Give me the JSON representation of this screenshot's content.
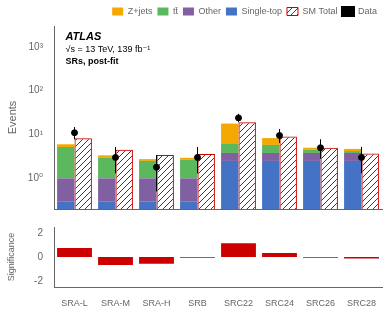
{
  "chart_data": [
    {
      "type": "bar",
      "stacked": true,
      "log": "y",
      "categories": [
        "SRA-L",
        "SRA-M",
        "SRA-H",
        "SRB",
        "SRC22",
        "SRC24",
        "SRC26",
        "SRC28"
      ],
      "series": [
        {
          "name": "Single-top",
          "color": "#4472c4",
          "values": [
            0.3,
            0.3,
            0.3,
            0.3,
            2.5,
            2.5,
            2.5,
            2.5
          ]
        },
        {
          "name": "Other",
          "color": "#8060a0",
          "values": [
            0.7,
            0.7,
            0.7,
            0.7,
            1.3,
            1.3,
            1.3,
            1.3
          ]
        },
        {
          "name": "tt̄",
          "color": "#5cb85c",
          "values": [
            4.2,
            2.0,
            1.5,
            1.7,
            2.5,
            2.0,
            0.7,
            0.4
          ]
        },
        {
          "name": "Z+jets",
          "color": "#f5a800",
          "values": [
            0.8,
            0.35,
            0.25,
            0.25,
            11.5,
            2.5,
            0.5,
            0.5
          ]
        },
        {
          "name": "SM Total",
          "type": "outline",
          "color": "#cc0000",
          "values": [
            8.2,
            4.5,
            3.4,
            3.6,
            19.0,
            9.0,
            5.0,
            3.7
          ]
        },
        {
          "name": "Data",
          "type": "scatter",
          "marker": "circle",
          "color": "black",
          "values": [
            11.0,
            3.0,
            1.8,
            3.0,
            24.0,
            9.5,
            5.0,
            3.0
          ],
          "err_up": [
            3.8,
            2.2,
            1.6,
            2.2,
            5.8,
            3.8,
            2.8,
            2.2
          ],
          "err_dn": [
            3.2,
            1.7,
            1.3,
            1.7,
            4.9,
            3.1,
            2.2,
            1.7
          ]
        }
      ],
      "ylabel": "Events",
      "ylim": [
        0.2,
        3000
      ],
      "yticks": [
        {
          "value": 1,
          "label": "10⁰"
        },
        {
          "value": 10,
          "label": "10¹"
        },
        {
          "value": 100,
          "label": "10²"
        },
        {
          "value": 1000,
          "label": "10³"
        }
      ],
      "grid": false,
      "legend": "upper right",
      "tick_labels": "y",
      "annotations": [
        "ATLAS",
        "√s = 13 TeV, 139 fb⁻¹",
        "SRs, post-fit"
      ]
    },
    {
      "type": "bar",
      "categories": [
        "SRA-L",
        "SRA-M",
        "SRA-H",
        "SRB",
        "SRC22",
        "SRC24",
        "SRC26",
        "SRC28"
      ],
      "values": [
        0.75,
        -0.65,
        -0.55,
        -0.05,
        1.15,
        0.35,
        -0.05,
        -0.12
      ],
      "color": "#cc0000",
      "ylabel": "Significance",
      "ylim": [
        -2.5,
        2.5
      ],
      "yticks": [
        -2,
        0,
        2
      ],
      "grid": false
    }
  ]
}
